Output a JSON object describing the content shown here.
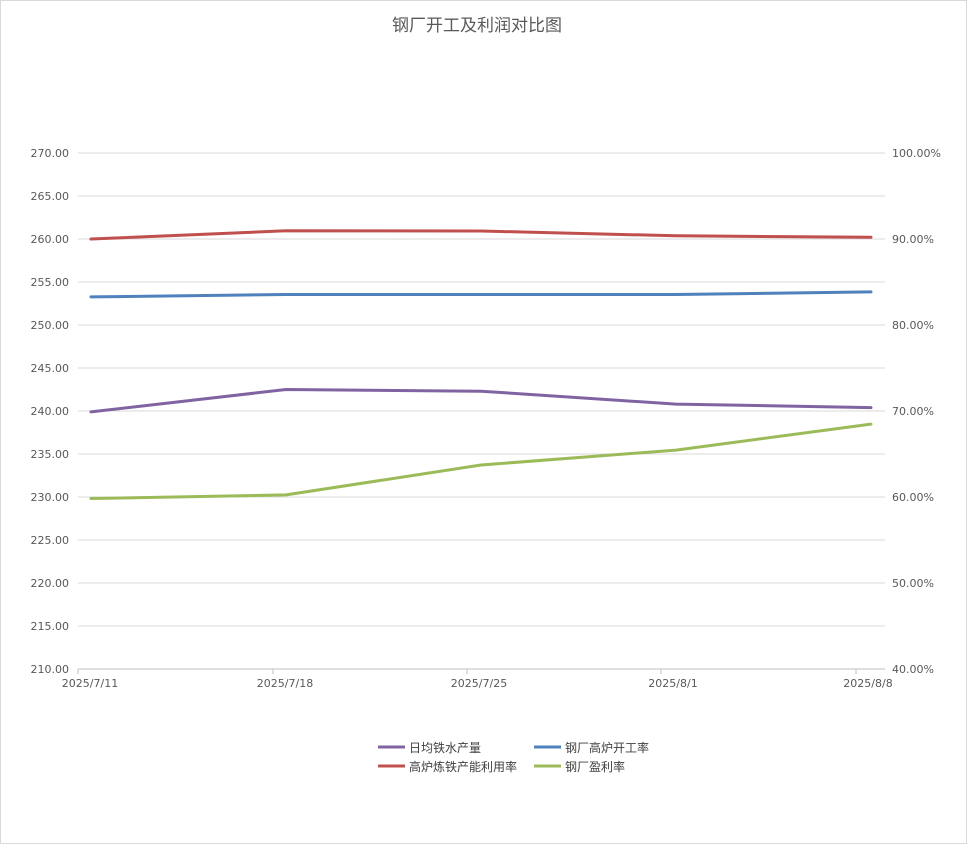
{
  "chart_data": {
    "type": "line",
    "title": "钢厂开工及利润对比图",
    "categories": [
      "2025/7/11",
      "2025/7/18",
      "2025/7/25",
      "2025/8/1",
      "2025/8/8"
    ],
    "left_axis": {
      "ylim": [
        210,
        270
      ],
      "ticks": [
        "210.00",
        "215.00",
        "220.00",
        "225.00",
        "230.00",
        "235.00",
        "240.00",
        "245.00",
        "250.00",
        "255.00",
        "260.00",
        "265.00",
        "270.00"
      ]
    },
    "right_axis": {
      "ylim": [
        0.4,
        1.0
      ],
      "ticks": [
        "40.00%",
        "50.00%",
        "60.00%",
        "70.00%",
        "80.00%",
        "90.00%",
        "100.00%"
      ]
    },
    "grid": true,
    "legend_position": "bottom",
    "series": [
      {
        "name": "日均铁水产量",
        "axis": "left",
        "color": "#8064a2",
        "values": [
          239.9,
          242.5,
          242.3,
          240.8,
          240.4
        ]
      },
      {
        "name": "钢厂高炉开工率",
        "axis": "right",
        "color": "#4f81bd",
        "values": [
          0.8327,
          0.8355,
          0.8355,
          0.8355,
          0.8385
        ]
      },
      {
        "name": "高炉炼铁产能利用率",
        "axis": "right",
        "color": "#c0504d",
        "values": [
          0.9,
          0.9095,
          0.9093,
          0.9037,
          0.902
        ]
      },
      {
        "name": "钢厂盈利率",
        "axis": "right",
        "color": "#9bbb59",
        "values": [
          0.5982,
          0.6025,
          0.6372,
          0.6545,
          0.6848
        ]
      }
    ]
  }
}
